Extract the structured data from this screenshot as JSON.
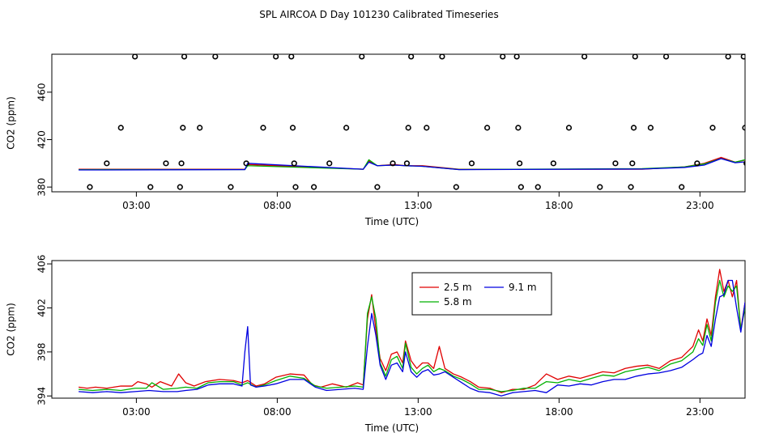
{
  "title": "SPL AIRCOA D  Day 101230  Calibrated Timeseries",
  "colors": {
    "2.5 m": "#e00000",
    "5.8 m": "#00b000",
    "9.1 m": "#0000e0",
    "points": "#000000",
    "axes": "#000000"
  },
  "chart_data": [
    {
      "type": "line",
      "xlabel": "Time (UTC)",
      "ylabel": "CO2 (ppm)",
      "xlim": [
        0,
        24.6
      ],
      "ylim": [
        376,
        492
      ],
      "xticks": [
        {
          "v": 3,
          "label": "03:00"
        },
        {
          "v": 8,
          "label": "08:00"
        },
        {
          "v": 13,
          "label": "13:00"
        },
        {
          "v": 18,
          "label": "18:00"
        },
        {
          "v": 23,
          "label": "23:00"
        }
      ],
      "yticks": [
        {
          "v": 380,
          "label": "380"
        },
        {
          "v": 420,
          "label": "420"
        },
        {
          "v": 460,
          "label": "460"
        }
      ],
      "points": [
        [
          0.4,
          380
        ],
        [
          1.0,
          400
        ],
        [
          1.5,
          430
        ],
        [
          2.0,
          490
        ],
        [
          2.55,
          380
        ],
        [
          3.1,
          400
        ],
        [
          3.6,
          380
        ],
        [
          3.65,
          400
        ],
        [
          3.7,
          430
        ],
        [
          3.75,
          490
        ],
        [
          4.3,
          430
        ],
        [
          4.85,
          490
        ],
        [
          5.4,
          380
        ],
        [
          5.95,
          400
        ],
        [
          6.55,
          430
        ],
        [
          7.0,
          490
        ],
        [
          7.55,
          490
        ],
        [
          7.6,
          430
        ],
        [
          7.65,
          400
        ],
        [
          7.7,
          380
        ],
        [
          8.35,
          380
        ],
        [
          8.9,
          400
        ],
        [
          9.5,
          430
        ],
        [
          10.05,
          490
        ],
        [
          10.6,
          380
        ],
        [
          11.15,
          400
        ],
        [
          11.65,
          400
        ],
        [
          11.7,
          430
        ],
        [
          11.8,
          490
        ],
        [
          12.35,
          430
        ],
        [
          12.9,
          490
        ],
        [
          13.4,
          380
        ],
        [
          13.95,
          400
        ],
        [
          14.5,
          430
        ],
        [
          15.05,
          490
        ],
        [
          15.55,
          490
        ],
        [
          15.6,
          430
        ],
        [
          15.65,
          400
        ],
        [
          15.7,
          380
        ],
        [
          16.3,
          380
        ],
        [
          16.85,
          400
        ],
        [
          17.4,
          430
        ],
        [
          17.95,
          490
        ],
        [
          18.5,
          380
        ],
        [
          19.05,
          400
        ],
        [
          19.6,
          380
        ],
        [
          19.65,
          400
        ],
        [
          19.7,
          430
        ],
        [
          19.75,
          490
        ],
        [
          20.3,
          430
        ],
        [
          20.85,
          490
        ],
        [
          21.4,
          380
        ],
        [
          21.95,
          400
        ],
        [
          22.5,
          430
        ],
        [
          23.05,
          490
        ],
        [
          23.6,
          490
        ],
        [
          23.65,
          430
        ],
        [
          23.7,
          400
        ],
        [
          23.75,
          380
        ]
      ],
      "series": [
        {
          "name": "2.5 m",
          "x": [
            0.0,
            5.9,
            6.0,
            10.1,
            10.3,
            10.6,
            11.2,
            11.6,
            12.2,
            13.5,
            20.0,
            21.5,
            22.2,
            22.8,
            23.3,
            23.9
          ],
          "y": [
            395,
            395,
            399,
            395,
            402,
            398,
            399,
            398,
            398,
            395,
            395,
            397,
            400,
            405,
            401,
            404
          ]
        },
        {
          "name": "5.8 m",
          "x": [
            0.0,
            5.9,
            6.0,
            10.1,
            10.3,
            10.6,
            11.2,
            11.6,
            12.2,
            13.5,
            20.0,
            21.5,
            22.2,
            22.8,
            23.3,
            24.0
          ],
          "y": [
            394.7,
            394.8,
            398,
            395,
            403,
            398,
            398.5,
            398,
            397.5,
            394.8,
            395.5,
            397,
            399.5,
            404,
            401,
            405
          ]
        },
        {
          "name": "9.1 m",
          "x": [
            0.0,
            5.9,
            6.0,
            10.1,
            10.3,
            10.6,
            11.2,
            11.6,
            12.2,
            13.5,
            20.0,
            21.5,
            22.2,
            22.8,
            23.3,
            24.0
          ],
          "y": [
            394.4,
            394.7,
            400,
            395,
            401,
            398,
            398.5,
            398,
            397.5,
            394.7,
            395.2,
            396.5,
            398.5,
            404,
            400.5,
            402
          ]
        }
      ]
    },
    {
      "type": "line",
      "xlabel": "Time (UTC)",
      "ylabel": "CO2 (ppm)",
      "xlim": [
        0,
        24.6
      ],
      "ylim": [
        393.8,
        406.3
      ],
      "xticks": [
        {
          "v": 3,
          "label": "03:00"
        },
        {
          "v": 8,
          "label": "08:00"
        },
        {
          "v": 13,
          "label": "13:00"
        },
        {
          "v": 18,
          "label": "18:00"
        },
        {
          "v": 23,
          "label": "23:00"
        }
      ],
      "yticks": [
        {
          "v": 394,
          "label": "394"
        },
        {
          "v": 398,
          "label": "398"
        },
        {
          "v": 402,
          "label": "402"
        },
        {
          "v": 406,
          "label": "406"
        }
      ],
      "legend": [
        {
          "name": "2.5 m"
        },
        {
          "name": "5.8 m"
        },
        {
          "name": "9.1 m"
        }
      ],
      "series": [
        {
          "name": "2.5 m",
          "x": [
            0.0,
            0.3,
            0.6,
            1.0,
            1.5,
            1.9,
            2.1,
            2.4,
            2.6,
            2.9,
            3.3,
            3.55,
            3.8,
            4.1,
            4.5,
            5.0,
            5.5,
            5.8,
            6.0,
            6.3,
            6.6,
            7.0,
            7.5,
            8.0,
            8.3,
            8.6,
            9.0,
            9.5,
            9.9,
            10.1,
            10.25,
            10.4,
            10.55,
            10.7,
            10.9,
            11.1,
            11.3,
            11.5,
            11.6,
            11.8,
            12.0,
            12.2,
            12.4,
            12.6,
            12.8,
            13.0,
            13.3,
            13.6,
            13.9,
            14.2,
            14.6,
            15.0,
            15.4,
            15.8,
            16.2,
            16.6,
            17.0,
            17.4,
            17.8,
            18.2,
            18.6,
            19.0,
            19.4,
            19.8,
            20.2,
            20.6,
            21.0,
            21.4,
            21.8,
            22.0,
            22.15,
            22.3,
            22.45,
            22.6,
            22.75,
            22.9,
            23.05,
            23.2,
            23.35,
            23.5,
            23.65,
            23.8,
            24.0
          ],
          "y": [
            394.8,
            394.7,
            394.8,
            394.7,
            394.9,
            394.9,
            395.3,
            395.1,
            394.8,
            395.3,
            394.9,
            396.0,
            395.2,
            394.9,
            395.3,
            395.5,
            395.4,
            395.2,
            395.4,
            394.9,
            395.1,
            395.7,
            396.0,
            395.9,
            395.0,
            394.8,
            395.1,
            394.8,
            395.2,
            395.0,
            401.0,
            403.2,
            400.0,
            397.4,
            396.3,
            397.8,
            398.0,
            397.0,
            399.0,
            397.2,
            396.5,
            397.0,
            397.0,
            396.5,
            398.5,
            396.5,
            396.0,
            395.7,
            395.3,
            394.8,
            394.7,
            394.3,
            394.6,
            394.6,
            395.0,
            396.0,
            395.5,
            395.8,
            395.6,
            395.9,
            396.2,
            396.1,
            396.5,
            396.7,
            396.8,
            396.5,
            397.2,
            397.5,
            398.5,
            400.0,
            399.0,
            401.0,
            399.5,
            403.0,
            405.5,
            403.5,
            404.5,
            403.0,
            404.5,
            400.0,
            402.5,
            402.0,
            401.0
          ]
        },
        {
          "name": "5.8 m",
          "x": [
            0.0,
            0.5,
            1.0,
            1.5,
            2.0,
            2.4,
            2.6,
            3.0,
            3.5,
            3.8,
            4.2,
            4.6,
            5.0,
            5.5,
            5.8,
            6.0,
            6.3,
            6.6,
            7.0,
            7.5,
            8.0,
            8.4,
            8.8,
            9.3,
            9.8,
            10.1,
            10.25,
            10.4,
            10.55,
            10.7,
            10.9,
            11.1,
            11.3,
            11.5,
            11.6,
            11.8,
            12.0,
            12.2,
            12.4,
            12.6,
            12.8,
            13.0,
            13.3,
            13.6,
            13.9,
            14.2,
            14.6,
            15.0,
            15.4,
            15.8,
            16.2,
            16.6,
            17.0,
            17.4,
            17.8,
            18.2,
            18.6,
            19.0,
            19.4,
            19.8,
            20.2,
            20.6,
            21.0,
            21.4,
            21.8,
            22.0,
            22.15,
            22.3,
            22.45,
            22.6,
            22.75,
            22.9,
            23.05,
            23.2,
            23.35,
            23.5,
            23.65,
            23.8,
            24.0
          ],
          "y": [
            394.6,
            394.5,
            394.6,
            394.5,
            394.7,
            394.7,
            395.2,
            394.6,
            394.7,
            394.8,
            394.7,
            395.2,
            395.3,
            395.3,
            395.0,
            395.2,
            394.8,
            395.0,
            395.4,
            395.8,
            395.6,
            394.9,
            394.7,
            394.8,
            394.9,
            394.8,
            401.5,
            403.0,
            401.0,
            397.0,
            395.8,
            397.3,
            397.6,
            396.5,
            398.8,
            396.6,
            396.0,
            396.5,
            396.8,
            396.2,
            396.5,
            396.3,
            395.8,
            395.5,
            395.1,
            394.6,
            394.6,
            394.4,
            394.5,
            394.7,
            394.7,
            395.3,
            395.2,
            395.5,
            395.3,
            395.6,
            395.9,
            395.8,
            396.2,
            396.4,
            396.6,
            396.3,
            396.9,
            397.2,
            398.0,
            399.2,
            398.6,
            400.5,
            399.0,
            402.5,
            404.5,
            403.0,
            404.0,
            403.5,
            404.0,
            400.0,
            402.0,
            402.0,
            405.0
          ]
        },
        {
          "name": "9.1 m",
          "x": [
            0.0,
            0.5,
            1.0,
            1.5,
            2.0,
            2.5,
            3.0,
            3.5,
            3.8,
            4.2,
            4.6,
            5.0,
            5.5,
            5.8,
            5.9,
            6.0,
            6.1,
            6.3,
            6.6,
            7.0,
            7.5,
            8.0,
            8.4,
            8.8,
            9.3,
            9.8,
            10.1,
            10.25,
            10.4,
            10.55,
            10.7,
            10.9,
            11.1,
            11.3,
            11.5,
            11.6,
            11.8,
            12.0,
            12.2,
            12.4,
            12.6,
            12.8,
            13.0,
            13.3,
            13.6,
            13.9,
            14.2,
            14.6,
            15.0,
            15.4,
            15.8,
            16.2,
            16.6,
            17.0,
            17.4,
            17.8,
            18.2,
            18.6,
            19.0,
            19.4,
            19.8,
            20.2,
            20.6,
            21.0,
            21.4,
            21.8,
            22.0,
            22.15,
            22.3,
            22.45,
            22.6,
            22.75,
            22.9,
            23.05,
            23.2,
            23.35,
            23.5,
            23.65,
            23.8,
            24.0
          ],
          "y": [
            394.4,
            394.3,
            394.4,
            394.3,
            394.4,
            394.5,
            394.4,
            394.4,
            394.5,
            394.6,
            395.0,
            395.1,
            395.1,
            394.9,
            398.0,
            400.3,
            395.0,
            394.8,
            394.9,
            395.1,
            395.5,
            395.5,
            394.8,
            394.5,
            394.6,
            394.7,
            394.6,
            398.5,
            401.5,
            399.5,
            396.8,
            395.5,
            396.8,
            397.0,
            396.2,
            398.0,
            396.2,
            395.7,
            396.2,
            396.4,
            395.9,
            396.0,
            396.2,
            395.7,
            395.2,
            394.7,
            394.4,
            394.3,
            394.0,
            394.3,
            394.4,
            394.5,
            394.3,
            395.0,
            394.9,
            395.1,
            395.0,
            395.3,
            395.5,
            395.5,
            395.8,
            396.0,
            396.1,
            396.3,
            396.6,
            397.3,
            397.7,
            397.9,
            399.5,
            398.5,
            401.0,
            403.0,
            403.2,
            404.5,
            404.5,
            402.0,
            399.8,
            402.5,
            402.5,
            402.0
          ]
        }
      ]
    }
  ]
}
